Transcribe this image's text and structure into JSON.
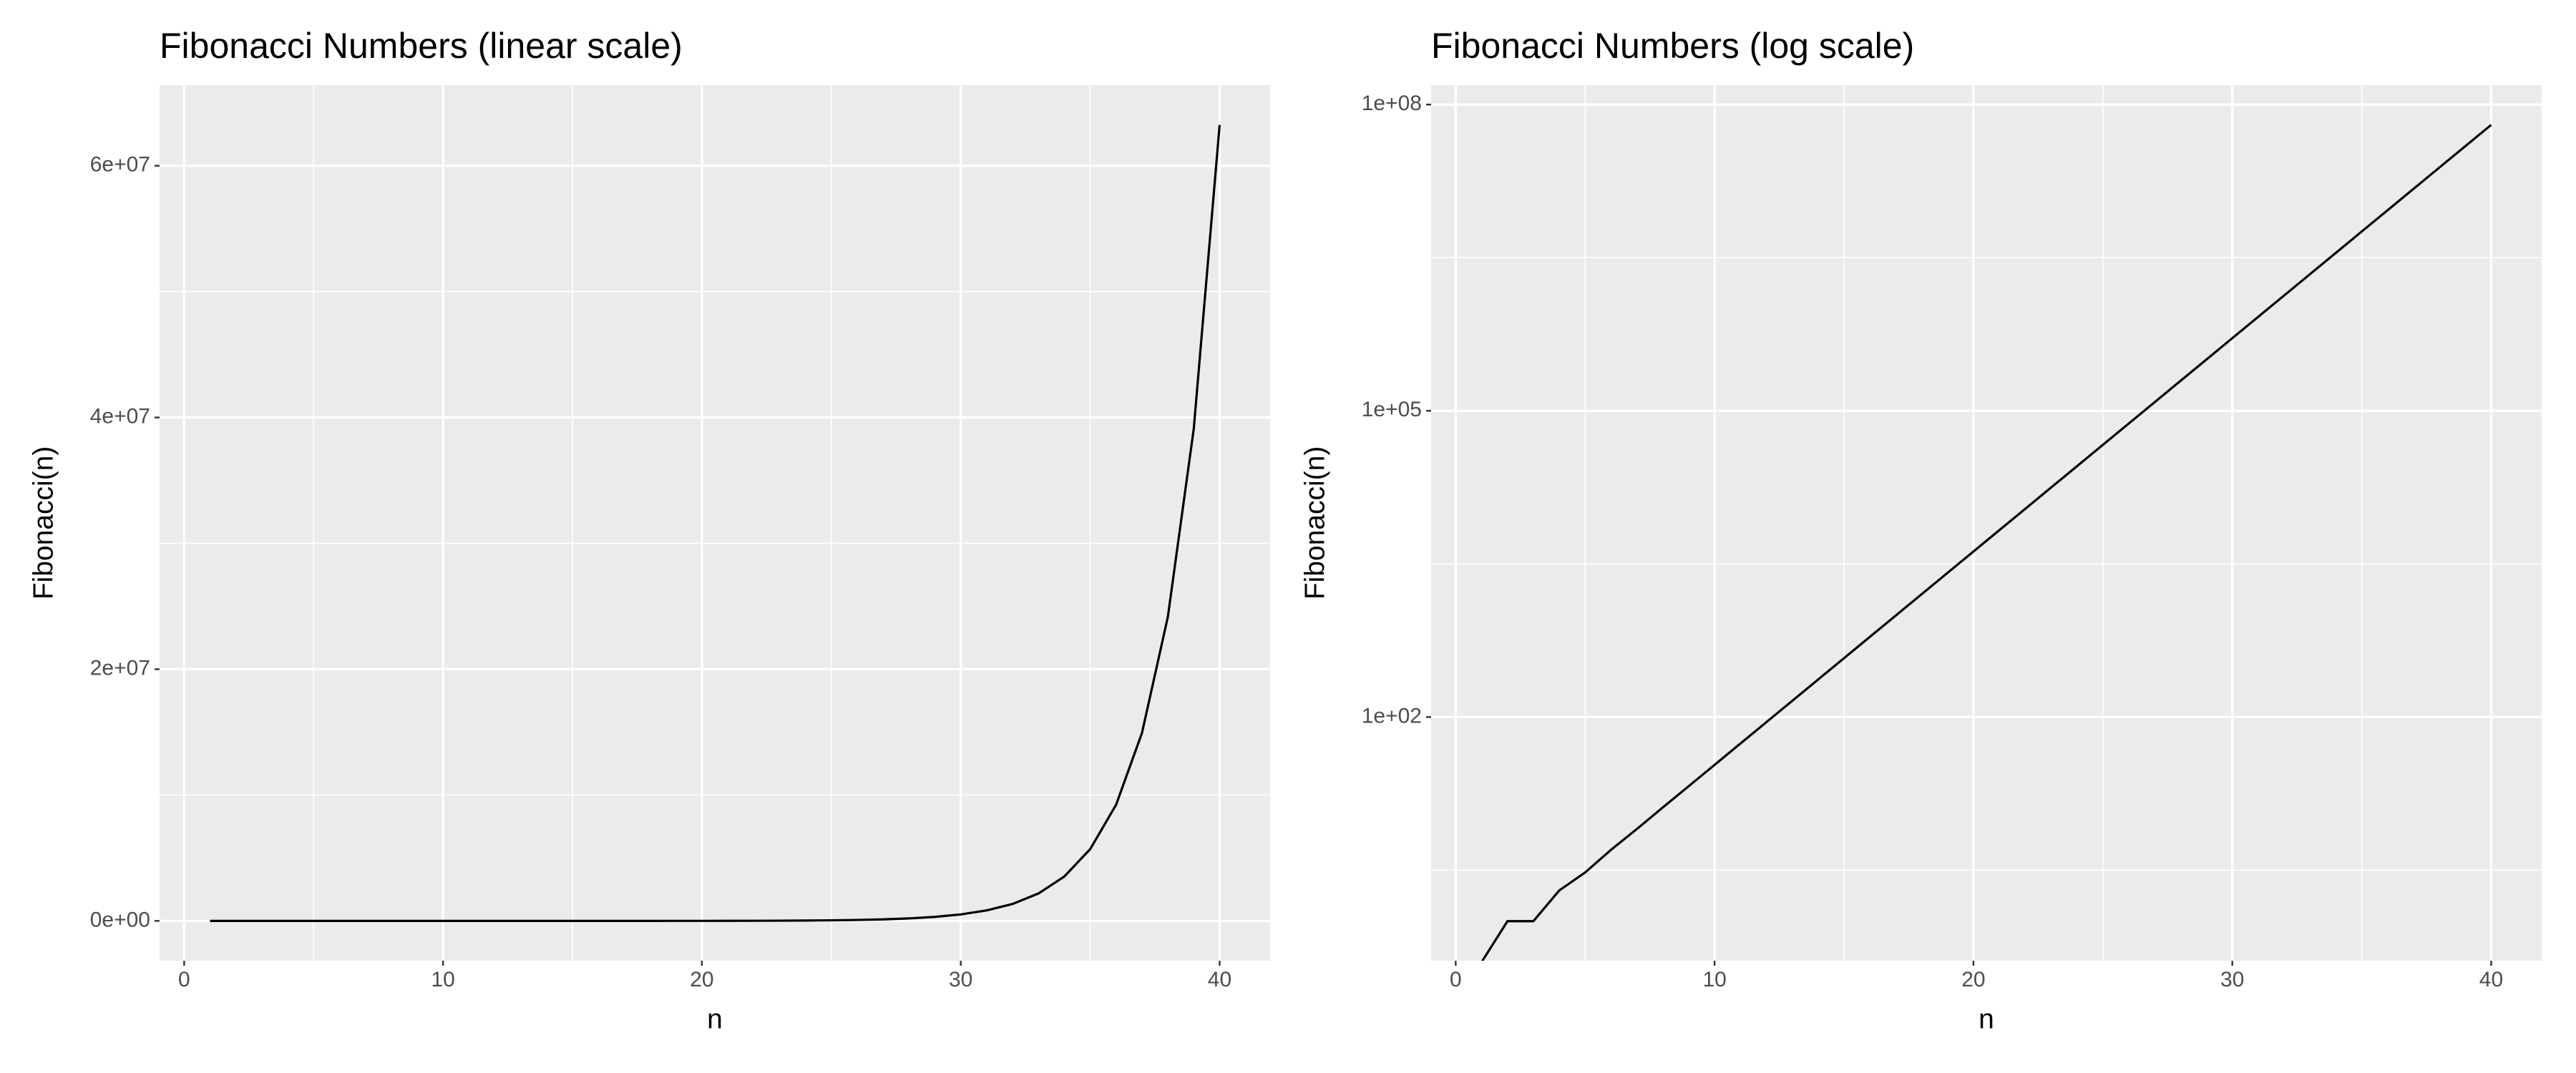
{
  "chart_data": [
    {
      "type": "line",
      "title": "Fibonacci Numbers (linear scale)",
      "x_label": "n",
      "y_label": "Fibonacci(n)",
      "x": [
        1,
        2,
        3,
        4,
        5,
        6,
        7,
        8,
        9,
        10,
        11,
        12,
        13,
        14,
        15,
        16,
        17,
        18,
        19,
        20,
        21,
        22,
        23,
        24,
        25,
        26,
        27,
        28,
        29,
        30,
        31,
        32,
        33,
        34,
        35,
        36,
        37,
        38,
        39,
        40
      ],
      "values": [
        0,
        1,
        1,
        2,
        3,
        5,
        8,
        13,
        21,
        34,
        55,
        89,
        144,
        233,
        377,
        610,
        987,
        1597,
        2584,
        4181,
        6765,
        10946,
        17711,
        28657,
        46368,
        75025,
        121393,
        196418,
        317811,
        514229,
        832040,
        1346269,
        2178309,
        3524578,
        5702887,
        9227465,
        14930352,
        24157817,
        39088169,
        63245986
      ],
      "color": "#000000",
      "log_scale": false,
      "grid": true,
      "xlim": [
        -0.95,
        41.95
      ],
      "xticks": [
        0,
        10,
        20,
        30,
        40
      ],
      "x_minor_ticks": [
        5,
        15,
        25,
        35
      ],
      "ylim": [
        -3162299,
        66408285
      ],
      "yticks": [
        {
          "value": 0,
          "label": "0e+00"
        },
        {
          "value": 20000000,
          "label": "2e+07"
        },
        {
          "value": 40000000,
          "label": "4e+07"
        },
        {
          "value": 60000000,
          "label": "6e+07"
        }
      ],
      "y_minor_ticks": [
        10000000,
        30000000,
        50000000
      ]
    },
    {
      "type": "line",
      "title": "Fibonacci Numbers (log scale)",
      "x_label": "n",
      "y_label": "Fibonacci(n)",
      "x": [
        1,
        2,
        3,
        4,
        5,
        6,
        7,
        8,
        9,
        10,
        11,
        12,
        13,
        14,
        15,
        16,
        17,
        18,
        19,
        20,
        21,
        22,
        23,
        24,
        25,
        26,
        27,
        28,
        29,
        30,
        31,
        32,
        33,
        34,
        35,
        36,
        37,
        38,
        39,
        40
      ],
      "values": [
        0,
        1,
        1,
        2,
        3,
        5,
        8,
        13,
        21,
        34,
        55,
        89,
        144,
        233,
        377,
        610,
        987,
        1597,
        2584,
        4181,
        6765,
        10946,
        17711,
        28657,
        46368,
        75025,
        121393,
        196418,
        317811,
        514229,
        832040,
        1346269,
        2178309,
        3524578,
        5702887,
        9227465,
        14930352,
        24157817,
        39088169,
        63245986
      ],
      "color": "#000000",
      "log_scale": true,
      "grid": true,
      "xlim": [
        -0.95,
        41.95
      ],
      "xticks": [
        0,
        10,
        20,
        30,
        40
      ],
      "x_minor_ticks": [
        5,
        15,
        25,
        35
      ],
      "ylim": [
        0.41,
        155000000
      ],
      "yticks": [
        {
          "value": 100,
          "label": "1e+02"
        },
        {
          "value": 100000,
          "label": "1e+05"
        },
        {
          "value": 100000000,
          "label": "1e+08"
        }
      ],
      "y_minor_ticks": [
        3.162,
        3162.3,
        3162278
      ]
    }
  ]
}
